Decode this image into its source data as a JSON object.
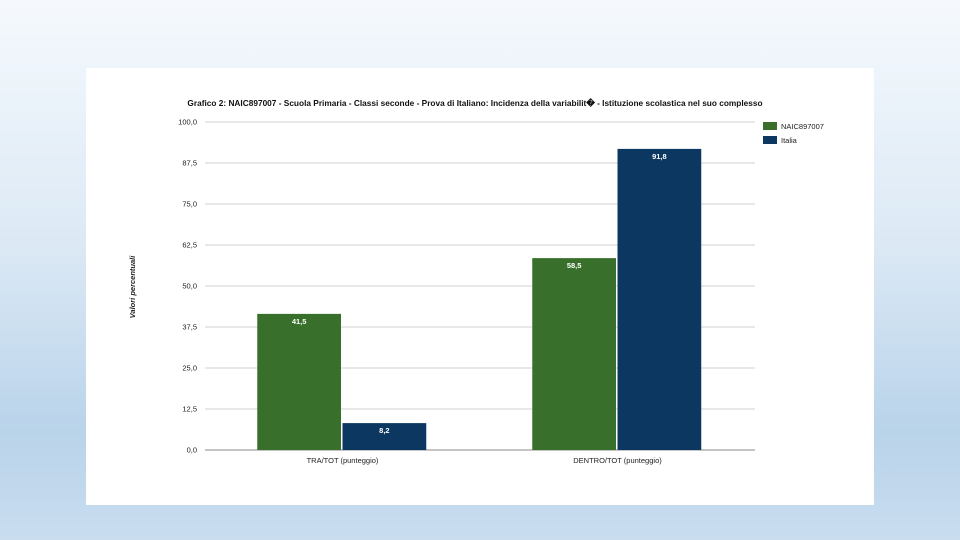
{
  "chart_data": {
    "type": "bar",
    "title": "Grafico 2: NAIC897007 - Scuola Primaria - Classi seconde - Prova di Italiano: Incidenza della variabilit� - Istituzione scolastica nel suo complesso",
    "ylabel": "Valori percentuali",
    "xlabel": "",
    "categories": [
      "TRA/TOT (punteggio)",
      "DENTRO/TOT (punteggio)"
    ],
    "series": [
      {
        "name": "NAIC897007",
        "color": "#38702b",
        "values": [
          41.5,
          58.5
        ],
        "labels": [
          "41,5",
          "58,5"
        ]
      },
      {
        "name": "Italia",
        "color": "#0c3760",
        "values": [
          8.2,
          91.8
        ],
        "labels": [
          "8,2",
          "91,8"
        ]
      }
    ],
    "ylim": [
      0,
      100
    ],
    "yticks": [
      0,
      12.5,
      25,
      37.5,
      50,
      62.5,
      75,
      87.5,
      100
    ],
    "ytick_labels": [
      "0,0",
      "12,5",
      "25,0",
      "37,5",
      "50,0",
      "62,5",
      "75,0",
      "87,5",
      "100,0"
    ],
    "grid": true,
    "legend_position": "top-right"
  }
}
